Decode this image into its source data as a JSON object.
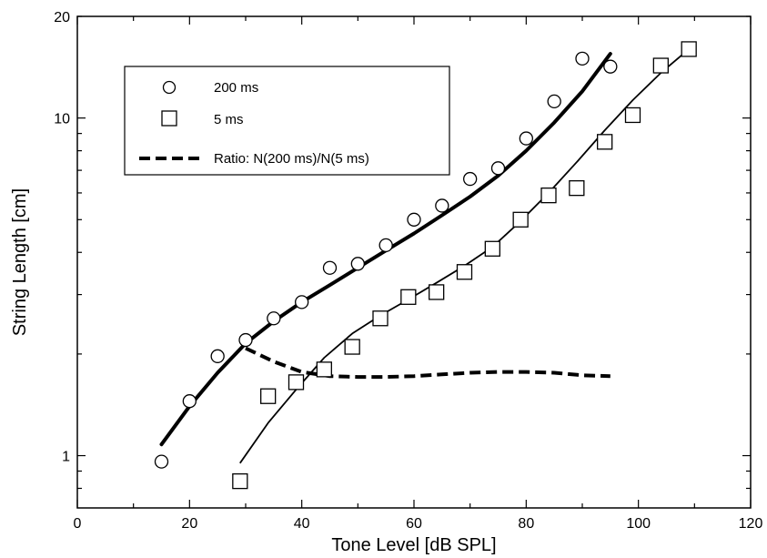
{
  "chart_data": {
    "type": "scatter",
    "xlabel": "Tone Level [dB SPL]",
    "ylabel": "String Length [cm]",
    "xlim": [
      0,
      120
    ],
    "ylim": [
      0.7,
      20
    ],
    "yscale": "log",
    "grid": false,
    "legend_position": "top-left",
    "x_ticks": [
      "0",
      "20",
      "40",
      "60",
      "80",
      "100",
      "120"
    ],
    "y_ticks": [
      "1",
      "10",
      "20"
    ],
    "series": [
      {
        "name": "200 ms",
        "marker": "circle",
        "x": [
          15,
          20,
          25,
          30,
          35,
          40,
          45,
          50,
          55,
          60,
          65,
          70,
          75,
          80,
          85,
          90,
          95
        ],
        "y": [
          0.96,
          1.45,
          1.97,
          2.2,
          2.55,
          2.85,
          3.6,
          3.7,
          4.2,
          5.0,
          5.5,
          6.6,
          7.1,
          8.7,
          11.2,
          15.0,
          14.2
        ]
      },
      {
        "name": "5 ms",
        "marker": "square",
        "x": [
          29,
          34,
          39,
          44,
          49,
          54,
          59,
          64,
          69,
          74,
          79,
          84,
          89,
          94,
          99,
          104,
          109
        ],
        "y": [
          0.84,
          1.5,
          1.65,
          1.8,
          2.1,
          2.55,
          2.95,
          3.05,
          3.5,
          4.1,
          5.0,
          5.9,
          6.2,
          8.5,
          10.2,
          14.3,
          16.0
        ]
      },
      {
        "name": "Ratio: N(200 ms)/N(5 ms)",
        "style": "dashed",
        "x": [
          30,
          35,
          40,
          45,
          50,
          55,
          60,
          65,
          70,
          75,
          80,
          85,
          90,
          95
        ],
        "y": [
          2.08,
          1.9,
          1.77,
          1.72,
          1.71,
          1.71,
          1.72,
          1.74,
          1.76,
          1.77,
          1.77,
          1.76,
          1.73,
          1.72
        ]
      }
    ],
    "fits": [
      {
        "series": "200 ms",
        "x": [
          15,
          20,
          25,
          30,
          35,
          40,
          45,
          50,
          55,
          60,
          65,
          70,
          75,
          80,
          85,
          90,
          95
        ],
        "y": [
          1.08,
          1.4,
          1.76,
          2.15,
          2.5,
          2.85,
          3.2,
          3.6,
          4.05,
          4.55,
          5.15,
          5.85,
          6.75,
          8.0,
          9.7,
          12.0,
          15.5
        ]
      },
      {
        "series": "5 ms",
        "x": [
          29,
          34,
          39,
          44,
          49,
          54,
          59,
          64,
          69,
          74,
          79,
          84,
          89,
          94,
          99,
          104,
          109
        ],
        "y": [
          0.95,
          1.25,
          1.57,
          1.95,
          2.3,
          2.6,
          2.9,
          3.25,
          3.65,
          4.15,
          4.95,
          6.0,
          7.4,
          9.2,
          11.3,
          13.6,
          16.0
        ]
      }
    ]
  }
}
